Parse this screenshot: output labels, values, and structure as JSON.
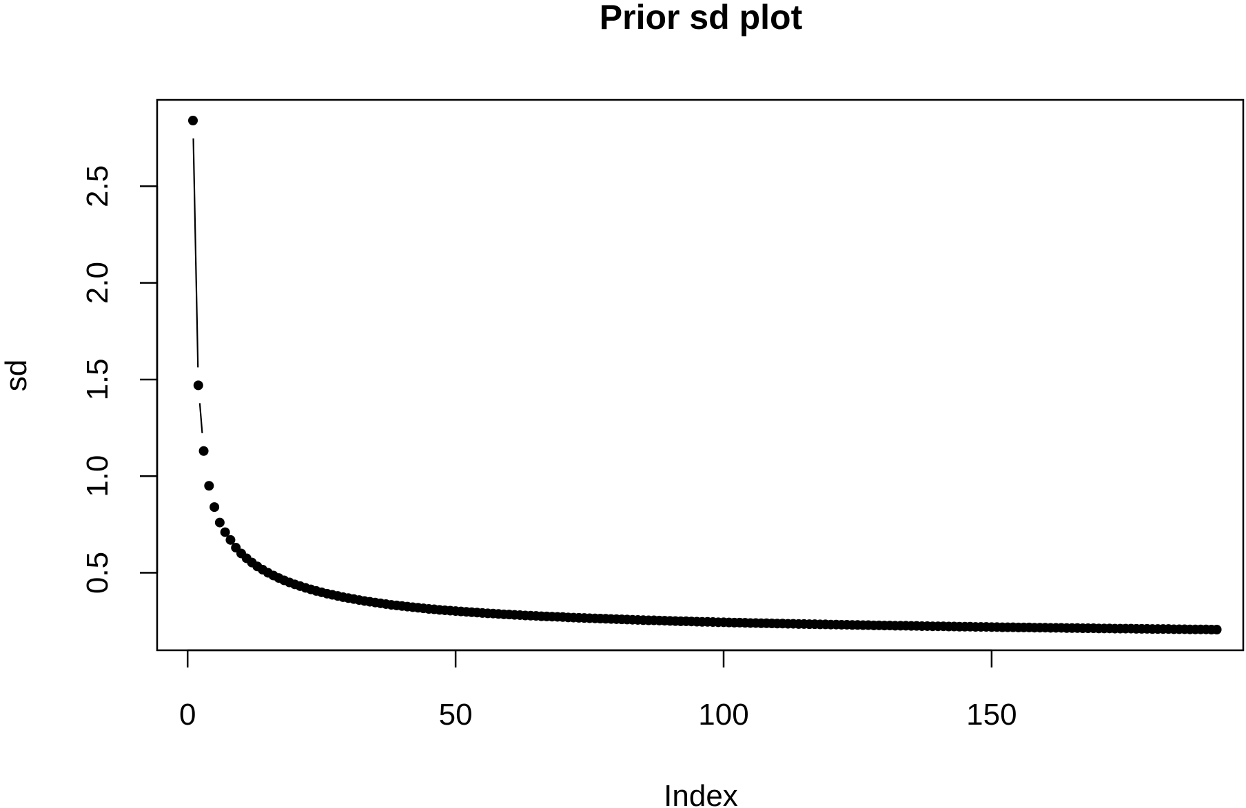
{
  "chart_data": {
    "type": "line",
    "title": "Prior sd plot",
    "xlabel": "Index",
    "ylabel": "sd",
    "xlim": [
      0,
      190
    ],
    "ylim": [
      0.2,
      2.85
    ],
    "x_ticks": [
      {
        "value": 0,
        "label": "0"
      },
      {
        "value": 50,
        "label": "50"
      },
      {
        "value": 100,
        "label": "100"
      },
      {
        "value": 150,
        "label": "150"
      }
    ],
    "y_ticks": [
      {
        "value": 0.5,
        "label": "0.5"
      },
      {
        "value": 1.0,
        "label": "1.0"
      },
      {
        "value": 1.5,
        "label": "1.5"
      },
      {
        "value": 2.0,
        "label": "2.0"
      },
      {
        "value": 2.5,
        "label": "2.5"
      }
    ],
    "grid": false,
    "legend": "none",
    "line_style": "overplotted points and line",
    "point_color": "#000000",
    "series": [
      {
        "n": 190,
        "x_start": 1,
        "x_step": 1,
        "values": [
          2.84,
          1.47,
          1.13,
          0.95,
          0.84,
          0.76,
          0.71,
          0.67,
          0.63,
          0.6,
          0.575,
          0.553,
          0.533,
          0.516,
          0.5,
          0.486,
          0.473,
          0.461,
          0.45,
          0.44,
          0.431,
          0.422,
          0.414,
          0.406,
          0.399,
          0.392,
          0.386,
          0.38,
          0.374,
          0.369,
          0.364,
          0.359,
          0.354,
          0.35,
          0.346,
          0.342,
          0.338,
          0.334,
          0.331,
          0.328,
          0.325,
          0.322,
          0.319,
          0.316,
          0.313,
          0.311,
          0.308,
          0.306,
          0.304,
          0.302,
          0.3,
          0.298,
          0.296,
          0.294,
          0.292,
          0.29,
          0.289,
          0.287,
          0.285,
          0.284,
          0.282,
          0.281,
          0.279,
          0.278,
          0.277,
          0.275,
          0.274,
          0.273,
          0.272,
          0.271,
          0.269,
          0.268,
          0.267,
          0.266,
          0.265,
          0.264,
          0.263,
          0.262,
          0.261,
          0.26,
          0.259,
          0.258,
          0.257,
          0.256,
          0.255,
          0.254,
          0.254,
          0.253,
          0.252,
          0.251,
          0.25,
          0.249,
          0.249,
          0.248,
          0.247,
          0.246,
          0.246,
          0.245,
          0.244,
          0.244,
          0.243,
          0.242,
          0.242,
          0.241,
          0.24,
          0.24,
          0.239,
          0.239,
          0.238,
          0.237,
          0.237,
          0.236,
          0.236,
          0.235,
          0.235,
          0.234,
          0.234,
          0.233,
          0.233,
          0.232,
          0.232,
          0.231,
          0.231,
          0.23,
          0.23,
          0.229,
          0.229,
          0.228,
          0.228,
          0.227,
          0.227,
          0.226,
          0.226,
          0.226,
          0.225,
          0.225,
          0.224,
          0.224,
          0.223,
          0.223,
          0.223,
          0.222,
          0.222,
          0.221,
          0.221,
          0.221,
          0.22,
          0.22,
          0.22,
          0.219,
          0.219,
          0.218,
          0.218,
          0.218,
          0.217,
          0.217,
          0.217,
          0.216,
          0.216,
          0.216,
          0.215,
          0.215,
          0.215,
          0.214,
          0.214,
          0.214,
          0.213,
          0.213,
          0.213,
          0.212,
          0.212,
          0.212,
          0.211,
          0.211,
          0.211,
          0.211,
          0.21,
          0.21,
          0.21,
          0.209,
          0.209,
          0.209,
          0.209,
          0.208,
          0.208,
          0.208,
          0.207,
          0.207,
          0.207,
          0.207,
          0.206,
          0.206
        ]
      }
    ]
  }
}
